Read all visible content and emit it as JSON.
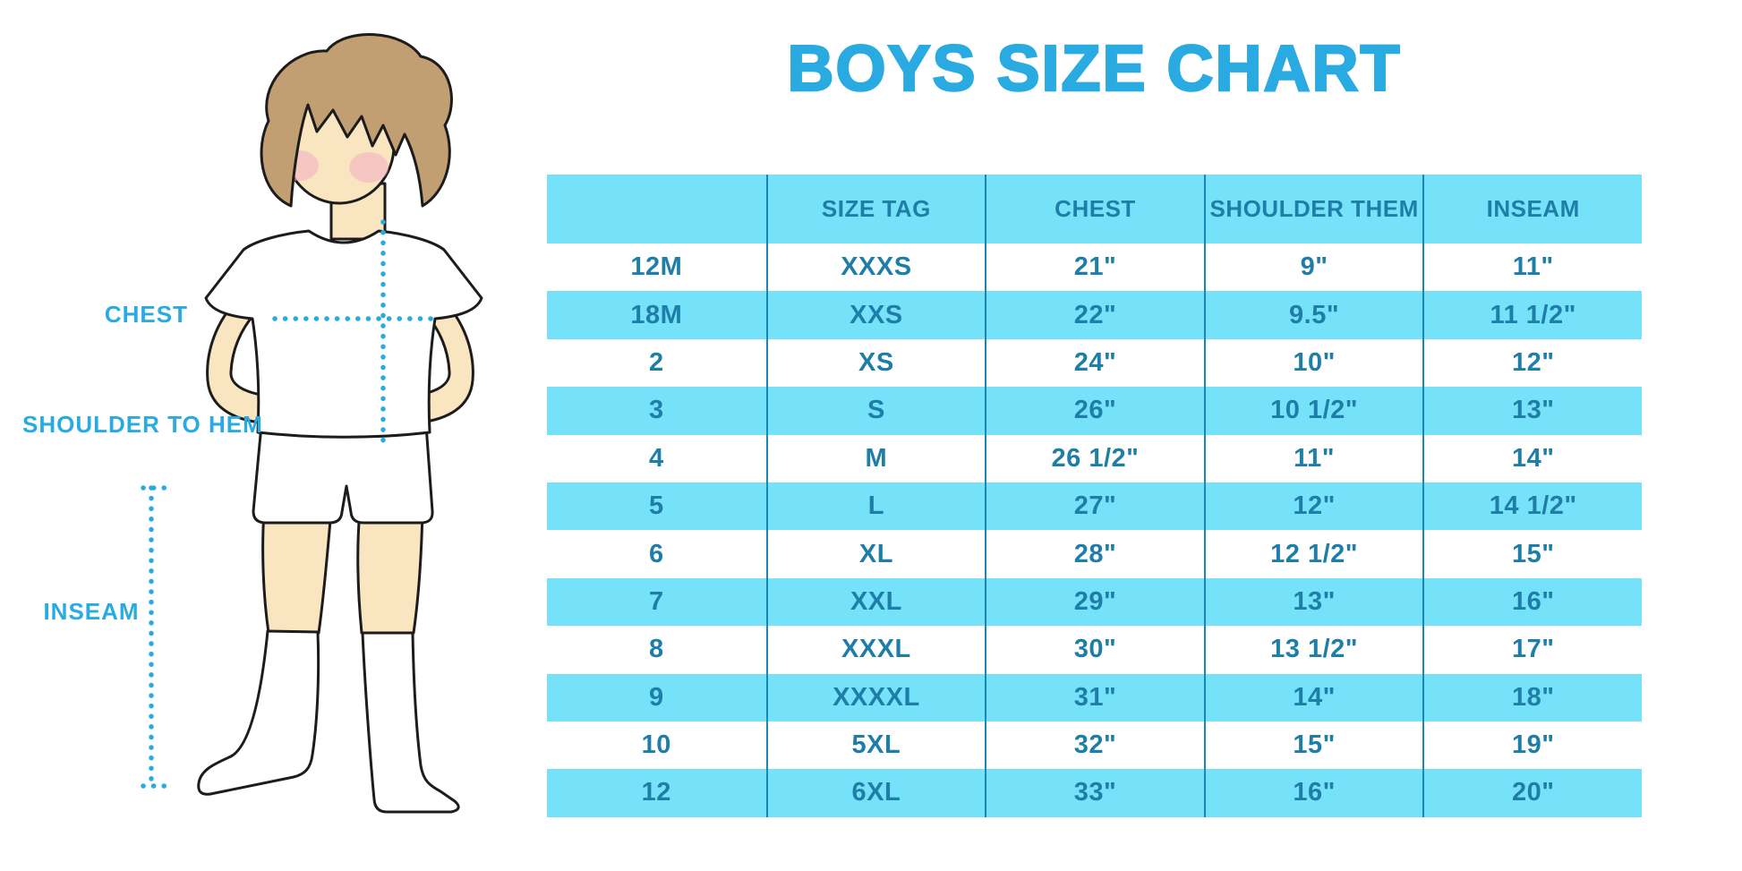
{
  "title": "BOYS SIZE CHART",
  "figure": {
    "labels": {
      "chest": "CHEST",
      "shoulder_to_hem": "SHOULDER TO HEM",
      "inseam": "INSEAM"
    }
  },
  "colors": {
    "accent_blue": "#29ABE2",
    "band_cyan": "#75E2F9",
    "table_text": "#1E7EA8",
    "table_border": "#1787B7",
    "skin": "#FAE5C1",
    "hair": "#C29F72",
    "blush": "#F3B3C3",
    "outline": "#1C1C1C"
  },
  "chart_data": {
    "type": "table",
    "title": "BOYS SIZE CHART",
    "columns": [
      "",
      "SIZE TAG",
      "CHEST",
      "SHOULDER THEM",
      "INSEAM"
    ],
    "rows": [
      [
        "12M",
        "XXXS",
        "21\"",
        "9\"",
        "11\""
      ],
      [
        "18M",
        "XXS",
        "22\"",
        "9.5\"",
        "11 1/2\""
      ],
      [
        "2",
        "XS",
        "24\"",
        "10\"",
        "12\""
      ],
      [
        "3",
        "S",
        "26\"",
        "10 1/2\"",
        "13\""
      ],
      [
        "4",
        "M",
        "26 1/2\"",
        "11\"",
        "14\""
      ],
      [
        "5",
        "L",
        "27\"",
        "12\"",
        "14 1/2\""
      ],
      [
        "6",
        "XL",
        "28\"",
        "12 1/2\"",
        "15\""
      ],
      [
        "7",
        "XXL",
        "29\"",
        "13\"",
        "16\""
      ],
      [
        "8",
        "XXXL",
        "30\"",
        "13 1/2\"",
        "17\""
      ],
      [
        "9",
        "XXXXL",
        "31\"",
        "14\"",
        "18\""
      ],
      [
        "10",
        "5XL",
        "32\"",
        "15\"",
        "19\""
      ],
      [
        "12",
        "6XL",
        "33\"",
        "16\"",
        "20\""
      ]
    ],
    "layout": {
      "header_fill": "#75E2F9",
      "alternating_rows": true,
      "grid": "vertical-only"
    }
  }
}
